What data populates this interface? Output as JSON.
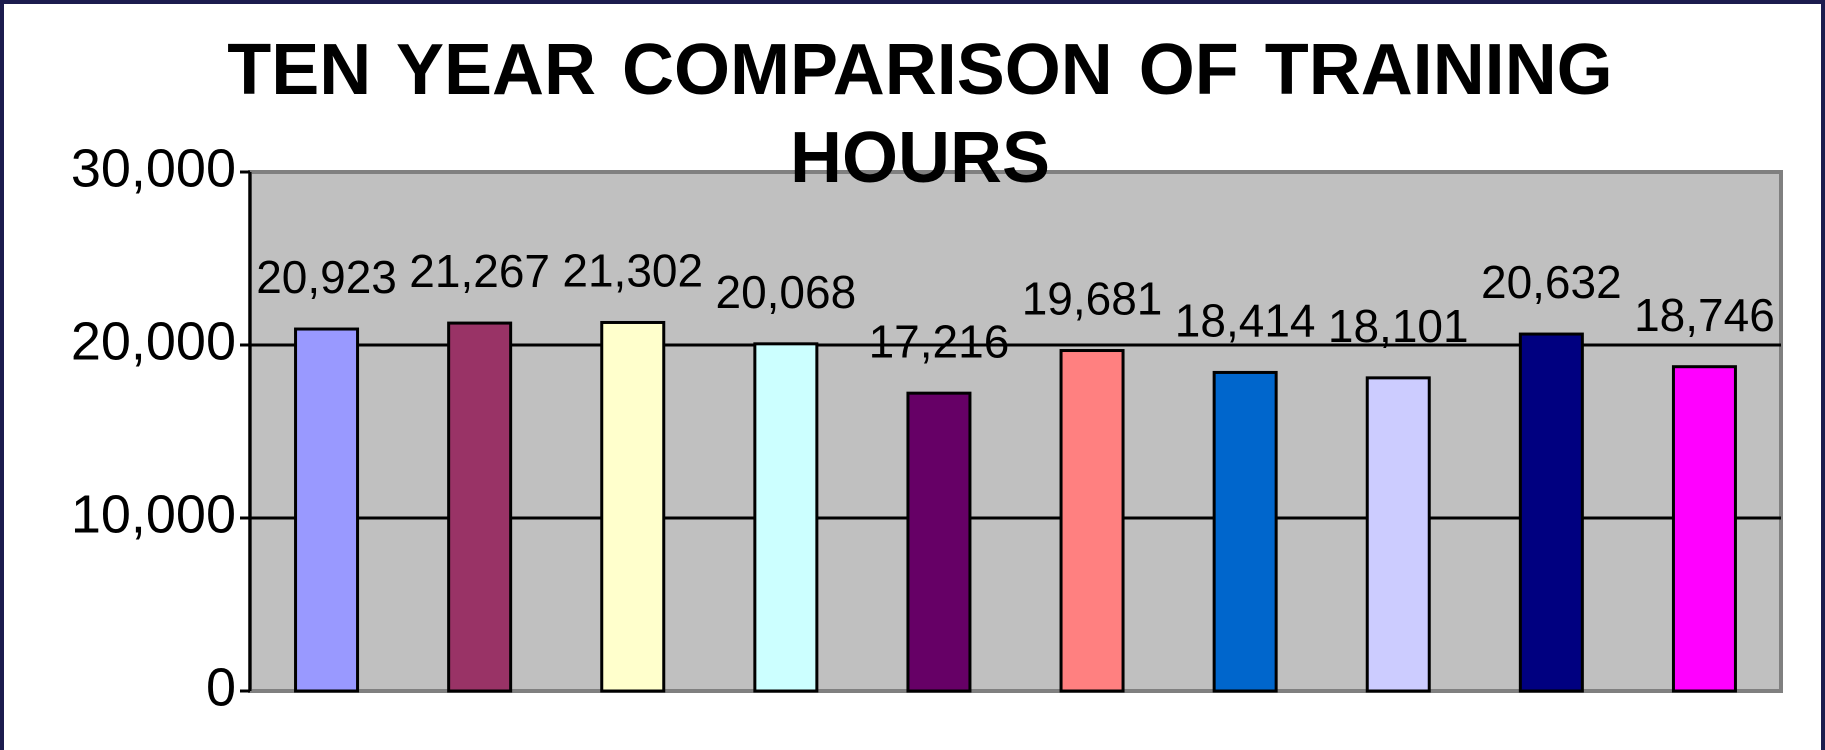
{
  "chart_data": {
    "type": "bar",
    "title": "TEN YEAR  COMPARISON  OF TRAINING HOURS",
    "values": [
      20923,
      21267,
      21302,
      20068,
      17216,
      19681,
      18414,
      18101,
      20632,
      18746
    ],
    "value_labels": [
      "20,923",
      "21,267",
      "21,302",
      "20,068",
      "17,216",
      "19,681",
      "18,414",
      "18,101",
      "20,632",
      "18,746"
    ],
    "colors": [
      "#9999ff",
      "#993366",
      "#ffffcc",
      "#ccffff",
      "#660066",
      "#ff8080",
      "#0066cc",
      "#ccccff",
      "#000080",
      "#ff00ff"
    ],
    "ylim": [
      0,
      30000
    ],
    "yticks": [
      {
        "value": 0,
        "label": "0"
      },
      {
        "value": 10000,
        "label": "10,000"
      },
      {
        "value": 20000,
        "label": "20,000"
      },
      {
        "value": 30000,
        "label": "30,000"
      }
    ],
    "grid": true
  }
}
